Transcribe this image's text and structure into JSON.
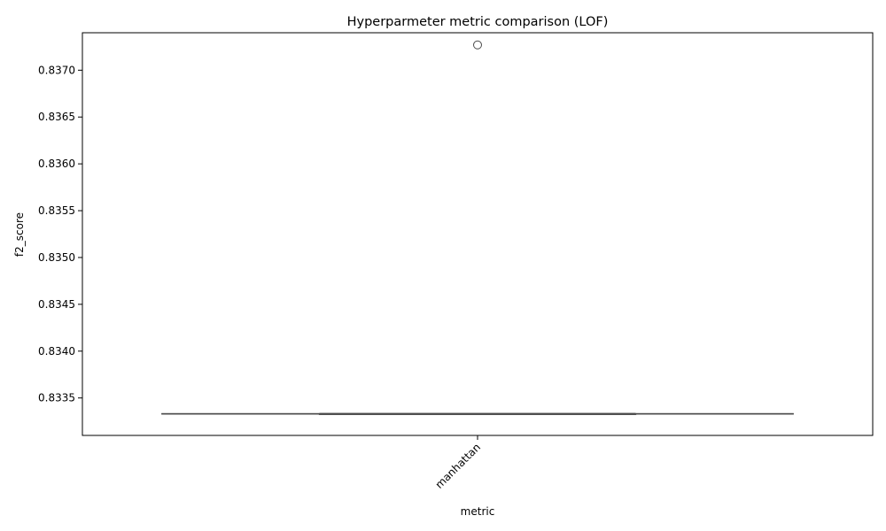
{
  "chart_data": {
    "type": "box",
    "title": "Hyperparmeter metric comparison (LOF)",
    "xlabel": "metric",
    "ylabel": "f2_score",
    "categories": [
      "manhattan"
    ],
    "ylim": [
      0.8331,
      0.8374
    ],
    "yticks": [
      0.8335,
      0.834,
      0.8345,
      0.835,
      0.8355,
      0.836,
      0.8365,
      0.837
    ],
    "ytick_labels": [
      "0.8335",
      "0.8340",
      "0.8345",
      "0.8350",
      "0.8355",
      "0.8360",
      "0.8365",
      "0.8370"
    ],
    "boxes": [
      {
        "category": "manhattan",
        "whisker_low": 0.83333,
        "q1": 0.83333,
        "median": 0.83333,
        "q3": 0.83333,
        "whisker_high": 0.83333,
        "outliers": [
          0.83727
        ]
      }
    ],
    "grid": false,
    "box_color": "#4a4a4a",
    "xtick_rotation_deg": 45
  }
}
